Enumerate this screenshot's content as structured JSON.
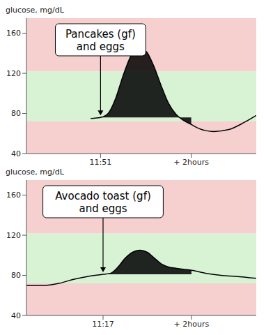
{
  "chart_data": [
    {
      "type": "line",
      "y_label": "glucose, mg/dL",
      "annotation": {
        "lines": [
          "Pancakes (gf)",
          "and eggs"
        ],
        "x": 0
      },
      "x": [
        -13,
        0,
        10,
        20,
        30,
        40,
        50,
        60,
        70,
        80,
        90,
        100,
        110,
        120,
        130,
        150,
        170,
        190,
        206
      ],
      "values": [
        75,
        76,
        80,
        95,
        118,
        137,
        145,
        142,
        128,
        108,
        90,
        79,
        73,
        69,
        65,
        62,
        64,
        71,
        78
      ],
      "xlim": [
        -98,
        206
      ],
      "xticks": [
        {
          "value": 0,
          "label": "11:51"
        },
        {
          "value": 120,
          "label": "+ 2hours"
        }
      ],
      "ylim": [
        40,
        175
      ],
      "yticks": [
        40,
        80,
        120,
        160
      ],
      "target_range": [
        72,
        122
      ],
      "meal_window": [
        0,
        120
      ],
      "baseline": 76,
      "color": "#000000",
      "grid": false
    },
    {
      "type": "line",
      "y_label": "glucose, mg/dL",
      "annotation": {
        "lines": [
          "Avocado toast (gf)",
          "and eggs"
        ],
        "x": 0
      },
      "x": [
        -104,
        -80,
        -60,
        -40,
        -20,
        0,
        10,
        20,
        30,
        40,
        50,
        60,
        70,
        80,
        90,
        100,
        110,
        120,
        140,
        160,
        180,
        208
      ],
      "values": [
        70,
        70,
        72,
        76,
        79,
        81,
        82,
        88,
        97,
        103,
        105,
        103,
        97,
        91,
        88,
        87,
        86,
        85,
        82,
        80,
        79,
        77
      ],
      "xlim": [
        -104,
        208
      ],
      "xticks": [
        {
          "value": 0,
          "label": "11:17"
        },
        {
          "value": 120,
          "label": "+ 2hours"
        }
      ],
      "ylim": [
        40,
        175
      ],
      "yticks": [
        40,
        80,
        120,
        160
      ],
      "target_range": [
        72,
        122
      ],
      "meal_window": [
        0,
        120
      ],
      "baseline": 81,
      "color": "#000000",
      "grid": false
    }
  ]
}
